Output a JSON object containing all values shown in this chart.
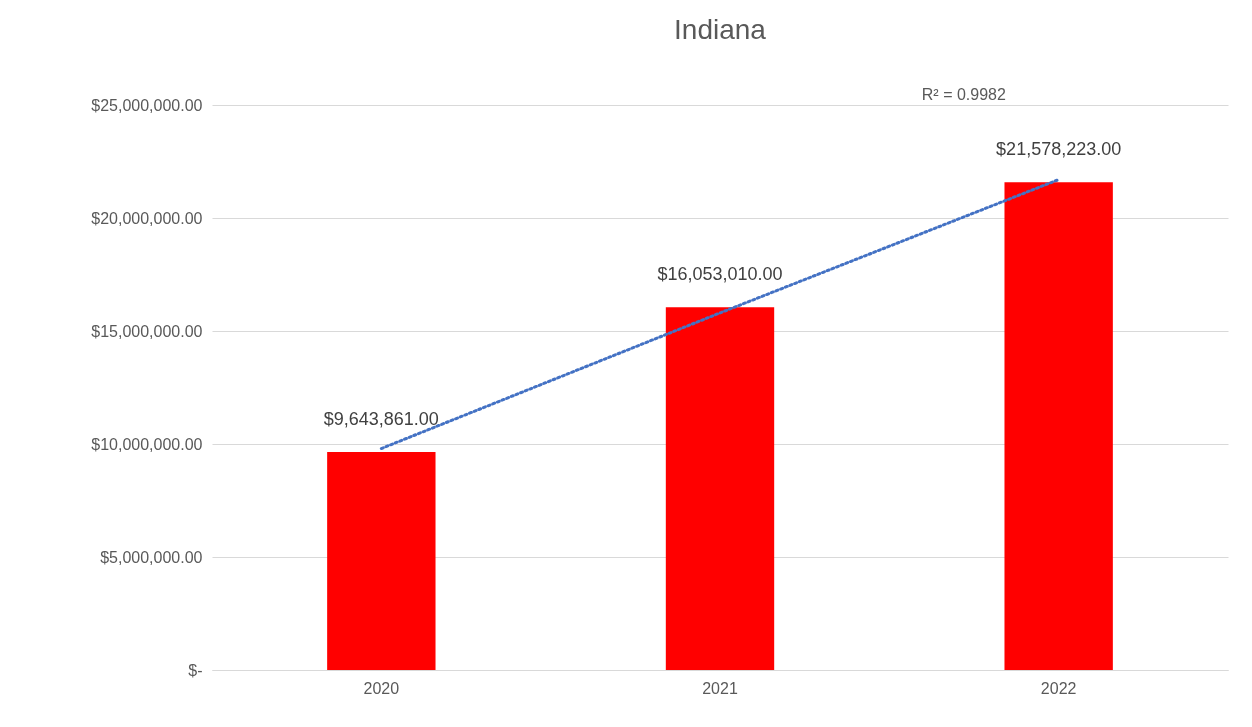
{
  "chart_data": {
    "type": "bar",
    "title": "Indiana",
    "categories": [
      "2020",
      "2021",
      "2022"
    ],
    "series": [
      {
        "color": "#ff0000",
        "values": [
          9643861,
          16053010,
          21578223
        ],
        "value_labels": [
          "$9,643,861.00",
          "$16,053,010.00",
          "$21,578,223.00"
        ]
      },
      {
        "type": "line",
        "color": "#4472c4",
        "line_style": "dotted",
        "values": [
          9800000,
          15800000,
          21700000
        ]
      }
    ],
    "ylim": [
      0,
      25000000
    ],
    "yticks": [
      {
        "value": 0,
        "label": "$-"
      },
      {
        "value": 5000000,
        "label": "$5,000,000.00"
      },
      {
        "value": 10000000,
        "label": "$10,000,000.00"
      },
      {
        "value": 15000000,
        "label": "$15,000,000.00"
      },
      {
        "value": 20000000,
        "label": "$20,000,000.00"
      },
      {
        "value": 25000000,
        "label": "$25,000,000.00"
      }
    ],
    "annotations": [
      "R² = 0.9982"
    ],
    "grid": "y"
  }
}
